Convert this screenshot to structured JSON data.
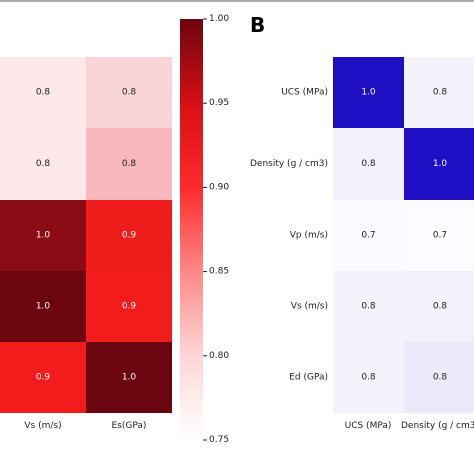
{
  "chart_data": [
    {
      "type": "heatmap",
      "panel_label": "",
      "columns": [
        "",
        "Vs (m/s)",
        "Es(GPa)"
      ],
      "rows": [
        "",
        "",
        "",
        "",
        ""
      ],
      "values": [
        [
          null,
          0.8,
          0.8
        ],
        [
          null,
          0.8,
          0.8
        ],
        [
          null,
          1.0,
          0.9
        ],
        [
          null,
          1.0,
          0.9
        ],
        [
          null,
          0.9,
          1.0
        ]
      ],
      "cell_colors": [
        [
          "#fce8ea",
          "#fde8ea",
          "#fad5d8"
        ],
        [
          "#fdebed",
          "#fde8ea",
          "#f8b8be"
        ],
        [
          "#7a0a10",
          "#8b0c14",
          "#f01c1c"
        ],
        [
          "#950d16",
          "#6d0510",
          "#f21c1c"
        ],
        [
          "#e01a1a",
          "#f21c1c",
          "#6b0510"
        ]
      ],
      "colorbar": {
        "min": 0.75,
        "max": 1.0,
        "ticks": [
          "0.75",
          "0.80",
          "0.85",
          "0.90",
          "0.95",
          "1.00"
        ],
        "colors": [
          "#ffffff",
          "#ffd6d6",
          "#ff8888",
          "#ff2a2a",
          "#d70f14",
          "#6d0510"
        ]
      }
    },
    {
      "type": "heatmap",
      "panel_label": "B",
      "columns": [
        "UCS (MPa)",
        "Density (g / cm3"
      ],
      "rows": [
        "UCS (MPa)",
        "Density (g / cm3)",
        "Vp (m/s)",
        "Vs (m/s)",
        "Ed (GPa)"
      ],
      "values": [
        [
          1.0,
          0.8
        ],
        [
          0.8,
          1.0
        ],
        [
          0.7,
          0.7
        ],
        [
          0.8,
          0.8
        ],
        [
          0.8,
          0.8
        ]
      ],
      "cell_colors": [
        [
          "#1e0ec4",
          "#f4f3fc"
        ],
        [
          "#f3f2fc",
          "#1e0ec4"
        ],
        [
          "#fbfaff",
          "#fcfbff"
        ],
        [
          "#f4f3fc",
          "#f3f2fc"
        ],
        [
          "#f4f3fc",
          "#eceafa"
        ]
      ]
    }
  ]
}
